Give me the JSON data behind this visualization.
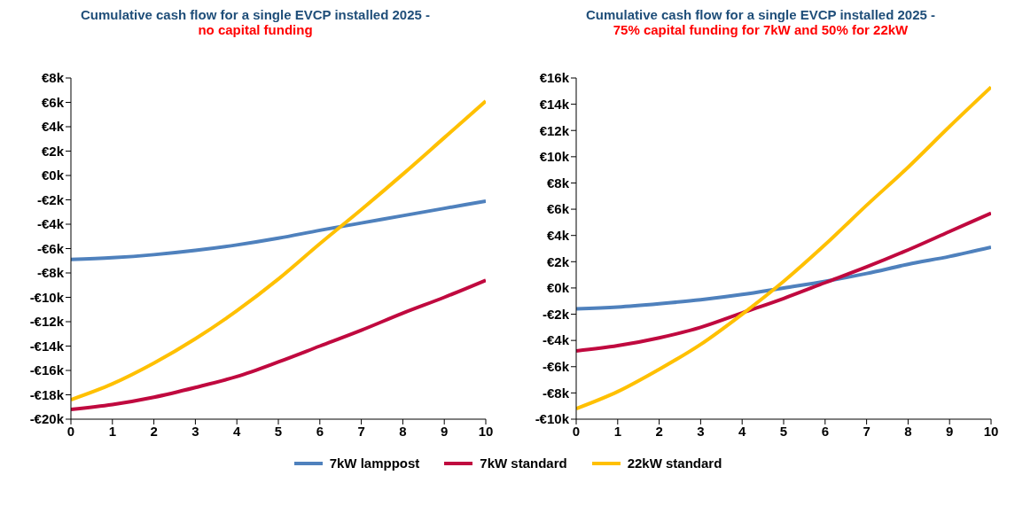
{
  "chart_data": [
    {
      "type": "line",
      "title": "Cumulative cash flow for a single EVCP installed 2025 -",
      "subtitle": "no capital funding",
      "x": [
        0,
        1,
        2,
        3,
        4,
        5,
        6,
        7,
        8,
        9,
        10
      ],
      "xlim": [
        0,
        10
      ],
      "xticks": [
        0,
        1,
        2,
        3,
        4,
        5,
        6,
        7,
        8,
        9,
        10
      ],
      "ylim": [
        -20,
        8
      ],
      "yticks": [
        {
          "value": -20,
          "label": "-€20k"
        },
        {
          "value": -18,
          "label": "-€18k"
        },
        {
          "value": -16,
          "label": "-€16k"
        },
        {
          "value": -14,
          "label": "-€14k"
        },
        {
          "value": -12,
          "label": "-€12k"
        },
        {
          "value": -10,
          "label": "-€10k"
        },
        {
          "value": -8,
          "label": "-€8k"
        },
        {
          "value": -6,
          "label": "-€6k"
        },
        {
          "value": -4,
          "label": "-€4k"
        },
        {
          "value": -2,
          "label": "-€2k"
        },
        {
          "value": 0,
          "label": "€0k"
        },
        {
          "value": 2,
          "label": "€2k"
        },
        {
          "value": 4,
          "label": "€4k"
        },
        {
          "value": 6,
          "label": "€6k"
        },
        {
          "value": 8,
          "label": "€8k"
        }
      ],
      "grid": false,
      "legend": "bottom",
      "marker": "none",
      "line_style": "solid",
      "series": [
        {
          "name": "7kW lamppost",
          "color": "#4f81bd",
          "values": [
            -6.9,
            -6.75,
            -6.5,
            -6.15,
            -5.7,
            -5.15,
            -4.5,
            -3.9,
            -3.3,
            -2.7,
            -2.1
          ]
        },
        {
          "name": "7kW standard",
          "color": "#c0093f",
          "values": [
            -19.2,
            -18.8,
            -18.2,
            -17.4,
            -16.5,
            -15.3,
            -14.0,
            -12.7,
            -11.3,
            -10.0,
            -8.6
          ]
        },
        {
          "name": "22kW standard",
          "color": "#ffc000",
          "values": [
            -18.4,
            -17.1,
            -15.4,
            -13.4,
            -11.1,
            -8.5,
            -5.6,
            -2.8,
            0.1,
            3.1,
            6.1
          ]
        }
      ]
    },
    {
      "type": "line",
      "title": "Cumulative cash flow for a single EVCP installed 2025 -",
      "subtitle": "75% capital funding for 7kW and 50% for 22kW",
      "x": [
        0,
        1,
        2,
        3,
        4,
        5,
        6,
        7,
        8,
        9,
        10
      ],
      "xlim": [
        0,
        10
      ],
      "xticks": [
        0,
        1,
        2,
        3,
        4,
        5,
        6,
        7,
        8,
        9,
        10
      ],
      "ylim": [
        -10,
        16
      ],
      "yticks": [
        {
          "value": -10,
          "label": "-€10k"
        },
        {
          "value": -8,
          "label": "-€8k"
        },
        {
          "value": -6,
          "label": "-€6k"
        },
        {
          "value": -4,
          "label": "-€4k"
        },
        {
          "value": -2,
          "label": "-€2k"
        },
        {
          "value": 0,
          "label": "€0k"
        },
        {
          "value": 2,
          "label": "€2k"
        },
        {
          "value": 4,
          "label": "€4k"
        },
        {
          "value": 6,
          "label": "€6k"
        },
        {
          "value": 8,
          "label": "€8k"
        },
        {
          "value": 10,
          "label": "€10k"
        },
        {
          "value": 12,
          "label": "€12k"
        },
        {
          "value": 14,
          "label": "€14k"
        },
        {
          "value": 16,
          "label": "€16k"
        }
      ],
      "grid": false,
      "marker": "none",
      "line_style": "solid",
      "series": [
        {
          "color": "#4f81bd",
          "values": [
            -1.6,
            -1.45,
            -1.2,
            -0.9,
            -0.5,
            0,
            0.5,
            1.1,
            1.8,
            2.4,
            3.1
          ]
        },
        {
          "color": "#c0093f",
          "values": [
            -4.8,
            -4.4,
            -3.8,
            -3.0,
            -1.9,
            -0.8,
            0.4,
            1.6,
            2.9,
            4.3,
            5.7
          ]
        },
        {
          "color": "#ffc000",
          "values": [
            -9.2,
            -7.9,
            -6.2,
            -4.3,
            -2.0,
            0.5,
            3.3,
            6.3,
            9.2,
            12.3,
            15.3
          ]
        }
      ]
    }
  ]
}
